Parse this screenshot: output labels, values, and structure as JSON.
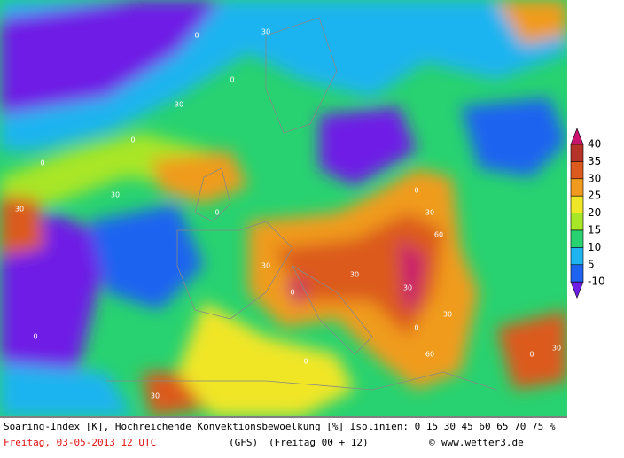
{
  "map": {
    "contour_labels": [
      "0",
      "30",
      "0",
      "30",
      "0",
      "30",
      "0",
      "30",
      "0",
      "30",
      "0",
      "30",
      "0",
      "30",
      "60",
      "30",
      "0",
      "30",
      "0",
      "30",
      "60",
      "0",
      "30",
      "0"
    ]
  },
  "colorbar": {
    "levels": [
      40,
      35,
      30,
      25,
      20,
      15,
      10,
      5,
      -10
    ],
    "colors": [
      "#c8146e",
      "#b43228",
      "#dc5a1e",
      "#f09b1e",
      "#f0e628",
      "#a8e628",
      "#28d270",
      "#1eb4f0",
      "#1e64f0",
      "#6e1ee6"
    ]
  },
  "footer": {
    "line1": "Soaring-Index [K], Hochreichende Konvektionsbewoelkung [%] Isolinien: 0 15 30 45 60 65 70 75 %",
    "date": "Freitag, 03-05-2013  12 UTC",
    "model": "(GFS)",
    "run": "(Freitag 00 + 12)",
    "copyright": "©",
    "site": "www.wetter3.de"
  }
}
